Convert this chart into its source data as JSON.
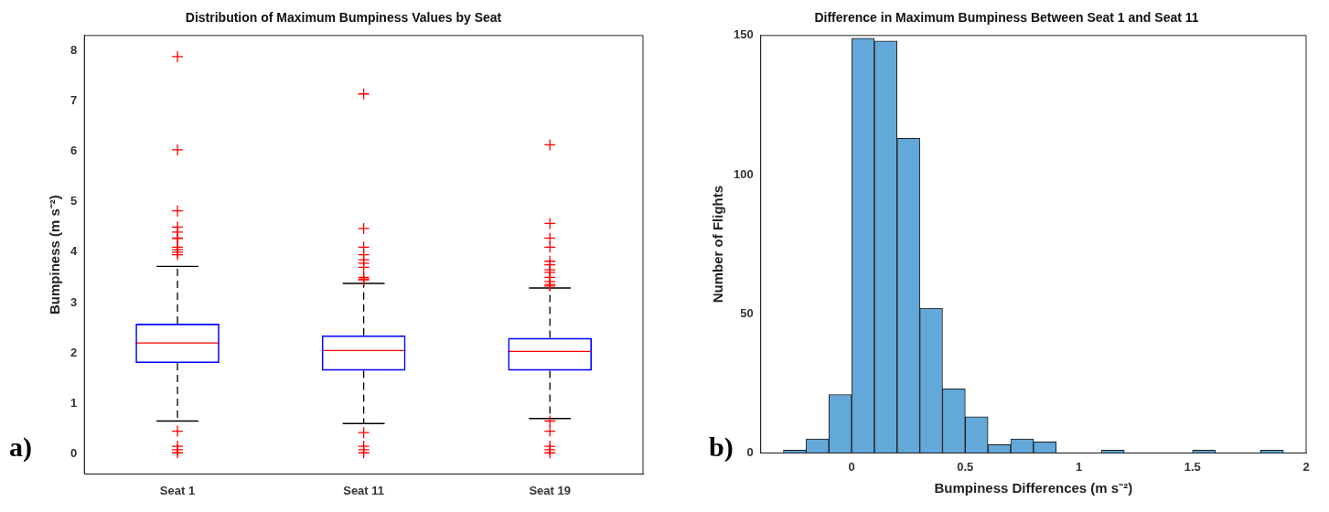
{
  "chart_data": [
    {
      "type": "box",
      "title": "Distribution of Maximum Bumpiness Values by Seat",
      "ylabel": "Bumpiness (m s⁻²)",
      "categories": [
        "Seat 1",
        "Seat 11",
        "Seat 19"
      ],
      "color": "#0000ff",
      "ylim": [
        -0.4,
        8.3
      ],
      "yticks": [
        0,
        1,
        2,
        3,
        4,
        5,
        6,
        7,
        8
      ],
      "annotations": [
        "a)"
      ],
      "boxes": [
        {
          "low": 0.65,
          "q1": 1.8,
          "median": 2.2,
          "q3": 2.58,
          "high": 3.72,
          "outliers": [
            7.88,
            6.03,
            4.82,
            4.5,
            4.4,
            4.28,
            4.27,
            4.1,
            4.05,
            4.0,
            3.95,
            0.45,
            0.15,
            0.08,
            0.02
          ]
        },
        {
          "low": 0.6,
          "q1": 1.65,
          "median": 2.05,
          "q3": 2.35,
          "high": 3.38,
          "outliers": [
            7.14,
            4.47,
            4.1,
            3.95,
            3.85,
            3.78,
            3.7,
            3.5,
            3.47,
            3.45,
            0.42,
            0.15,
            0.08,
            0.02
          ]
        },
        {
          "low": 0.7,
          "q1": 1.65,
          "median": 2.03,
          "q3": 2.3,
          "high": 3.29,
          "outliers": [
            6.13,
            4.57,
            4.28,
            4.1,
            3.82,
            3.75,
            3.65,
            3.6,
            3.5,
            3.42,
            3.36,
            3.33,
            0.65,
            0.45,
            0.15,
            0.08,
            0.02
          ]
        }
      ]
    },
    {
      "type": "histogram",
      "title": "Difference in Maximum Bumpiness Between Seat 1 and Seat 11",
      "xlabel": "Bumpiness Differences (m s⁻²)",
      "ylabel": "Number of Flights",
      "color": "#62a8d8",
      "xlim": [
        -0.4,
        2
      ],
      "xticks": [
        0,
        0.5,
        1,
        1.5,
        2
      ],
      "ylim": [
        0,
        150
      ],
      "yticks": [
        0,
        50,
        100,
        150
      ],
      "annotations": [
        "b)"
      ],
      "bins": [
        -0.3,
        -0.2,
        -0.1,
        0,
        0.1,
        0.2,
        0.3,
        0.4,
        0.5,
        0.6,
        0.7,
        0.8,
        0.9,
        1.0,
        1.1,
        1.2,
        1.3,
        1.4,
        1.5,
        1.6,
        1.7,
        1.8,
        1.9
      ],
      "values": [
        1,
        5,
        21,
        149,
        148,
        113,
        52,
        23,
        13,
        3,
        5,
        4,
        0,
        0,
        1,
        0,
        0,
        0,
        1,
        0,
        0,
        1
      ]
    }
  ]
}
